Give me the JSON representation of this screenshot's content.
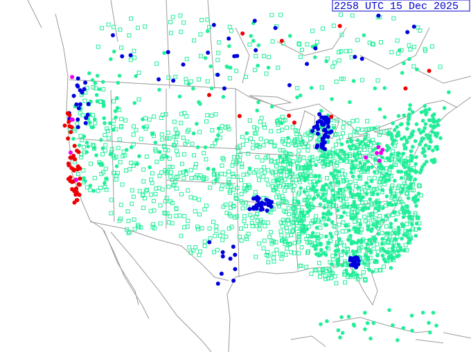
{
  "header": {
    "timestamp": "2258 UTC 15 Dec 2025"
  }
}
